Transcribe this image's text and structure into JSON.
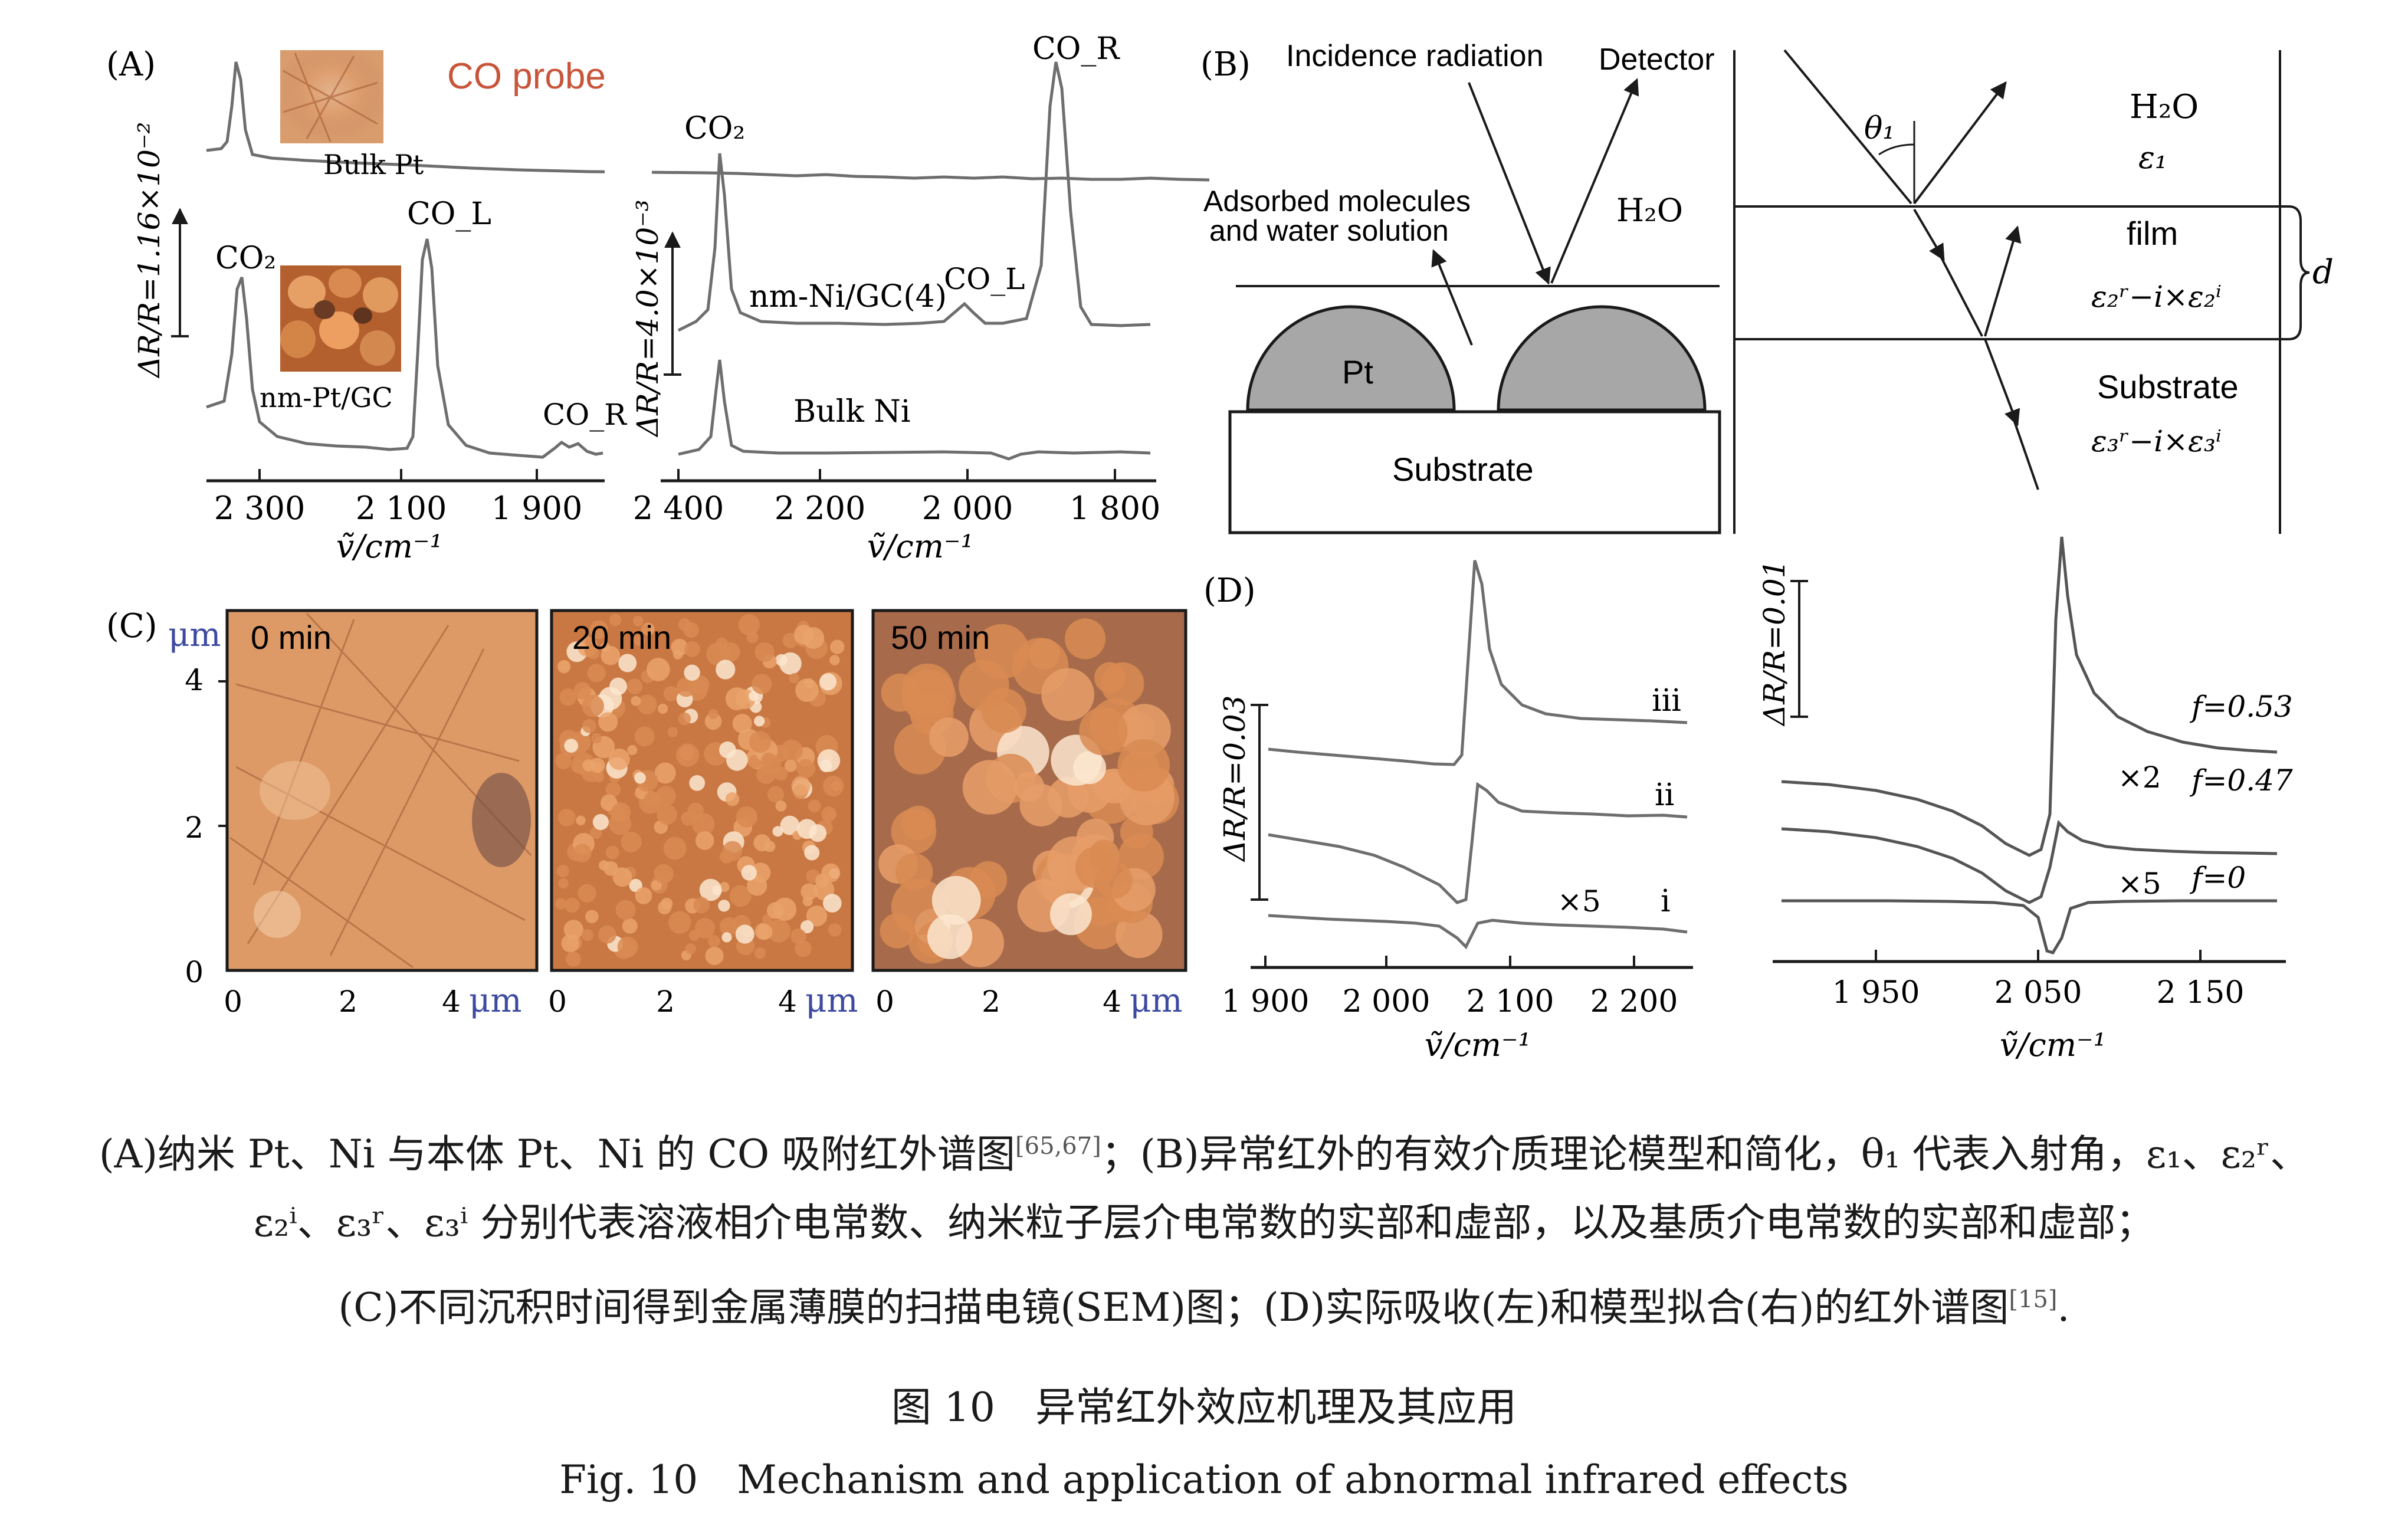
{
  "panel_a": {
    "label": "(A)",
    "left": {
      "co_probe": "CO probe",
      "bulk_pt": "Bulk Pt",
      "nm_pt": "nm-Pt/GC",
      "peak_co2": "CO₂",
      "peak_col": "CO_L",
      "peak_cor": "CO_R",
      "scale_label": "ΔR/R=1.16×10⁻²",
      "x_ticks": [
        "2 300",
        "2 100",
        "1 900"
      ],
      "x_label": "ṽ/cm⁻¹"
    },
    "right": {
      "peak_co2": "CO₂",
      "peak_cor": "CO_R",
      "peak_col": "CO_L",
      "nm_ni": "nm-Ni/GC(4)",
      "bulk_ni": "Bulk Ni",
      "scale_label": "ΔR/R=4.0×10⁻³",
      "x_ticks": [
        "2 400",
        "2 200",
        "2 000",
        "1 800"
      ],
      "x_label": "ṽ/cm⁻¹"
    }
  },
  "panel_b": {
    "label": "(B)",
    "incidence": "Incidence radiation",
    "detector": "Detector",
    "adsorbed_1": "Adsorbed molecules",
    "adsorbed_2": "and water solution",
    "h2o": "H₂O",
    "pt": "Pt",
    "substrate": "Substrate",
    "theta": "θ₁",
    "h2o_right": "H₂O",
    "eps1": "ε₁",
    "film": "film",
    "eps2": "ε₂ʳ−i×ε₂ⁱ",
    "d": "d",
    "substrate_right": "Substrate",
    "eps3": "ε₃ʳ−i×ε₃ⁱ"
  },
  "panel_c": {
    "label": "(C)",
    "unit": "μm",
    "y_ticks": [
      "4",
      "2",
      "0"
    ],
    "images": [
      {
        "label": "0 min",
        "x_ticks": [
          "0",
          "2",
          "4"
        ]
      },
      {
        "label": "20 min",
        "x_ticks": [
          "0",
          "2",
          "4"
        ]
      },
      {
        "label": "50 min",
        "x_ticks": [
          "0",
          "2",
          "4"
        ]
      }
    ]
  },
  "panel_d": {
    "label": "(D)",
    "left": {
      "scale_label": "ΔR/R=0.03",
      "trace_iii": "iii",
      "trace_ii": "ii",
      "trace_i": "i",
      "times5": "×5",
      "x_ticks": [
        "1 900",
        "2 000",
        "2 100",
        "2 200"
      ],
      "x_label": "ṽ/cm⁻¹"
    },
    "right": {
      "scale_label": "ΔR/R=0.01",
      "f053": "f=0.53",
      "f047": "f=0.47",
      "f0": "f=0",
      "times2": "×2",
      "times5": "×5",
      "x_ticks": [
        "1 950",
        "2 050",
        "2 150"
      ],
      "x_label": "ṽ/cm⁻¹"
    }
  },
  "caption": {
    "line1": "(A)纳米 Pt、Ni 与本体 Pt、Ni 的 CO 吸附红外谱图",
    "ref1": "[65,67]",
    "line1b": "；(B)异常红外的有效介质理论模型和简化，θ₁ 代表入射角，ε₁、ε₂ʳ、",
    "line2": "ε₂ⁱ、ε₃ʳ、ε₃ⁱ 分别代表溶液相介电常数、纳米粒子层介电常数的实部和虚部，以及基质介电常数的实部和虚部；",
    "line3": "(C)不同沉积时间得到金属薄膜的扫描电镜(SEM)图；(D)实际吸收(左)和模型拟合(右)的红外谱图",
    "ref2": "[15]",
    "line3end": ".",
    "title_cn": "图 10　异常红外效应机理及其应用",
    "title_en": "Fig. 10　Mechanism and application of abnormal infrared effects"
  },
  "colors": {
    "trace": "#6e6e6e",
    "co_probe_text": "#c8553a",
    "micron_blue": "#3d4aa0",
    "pt_particle": "#a7a7a7",
    "afm_orange": "#d9864e"
  }
}
